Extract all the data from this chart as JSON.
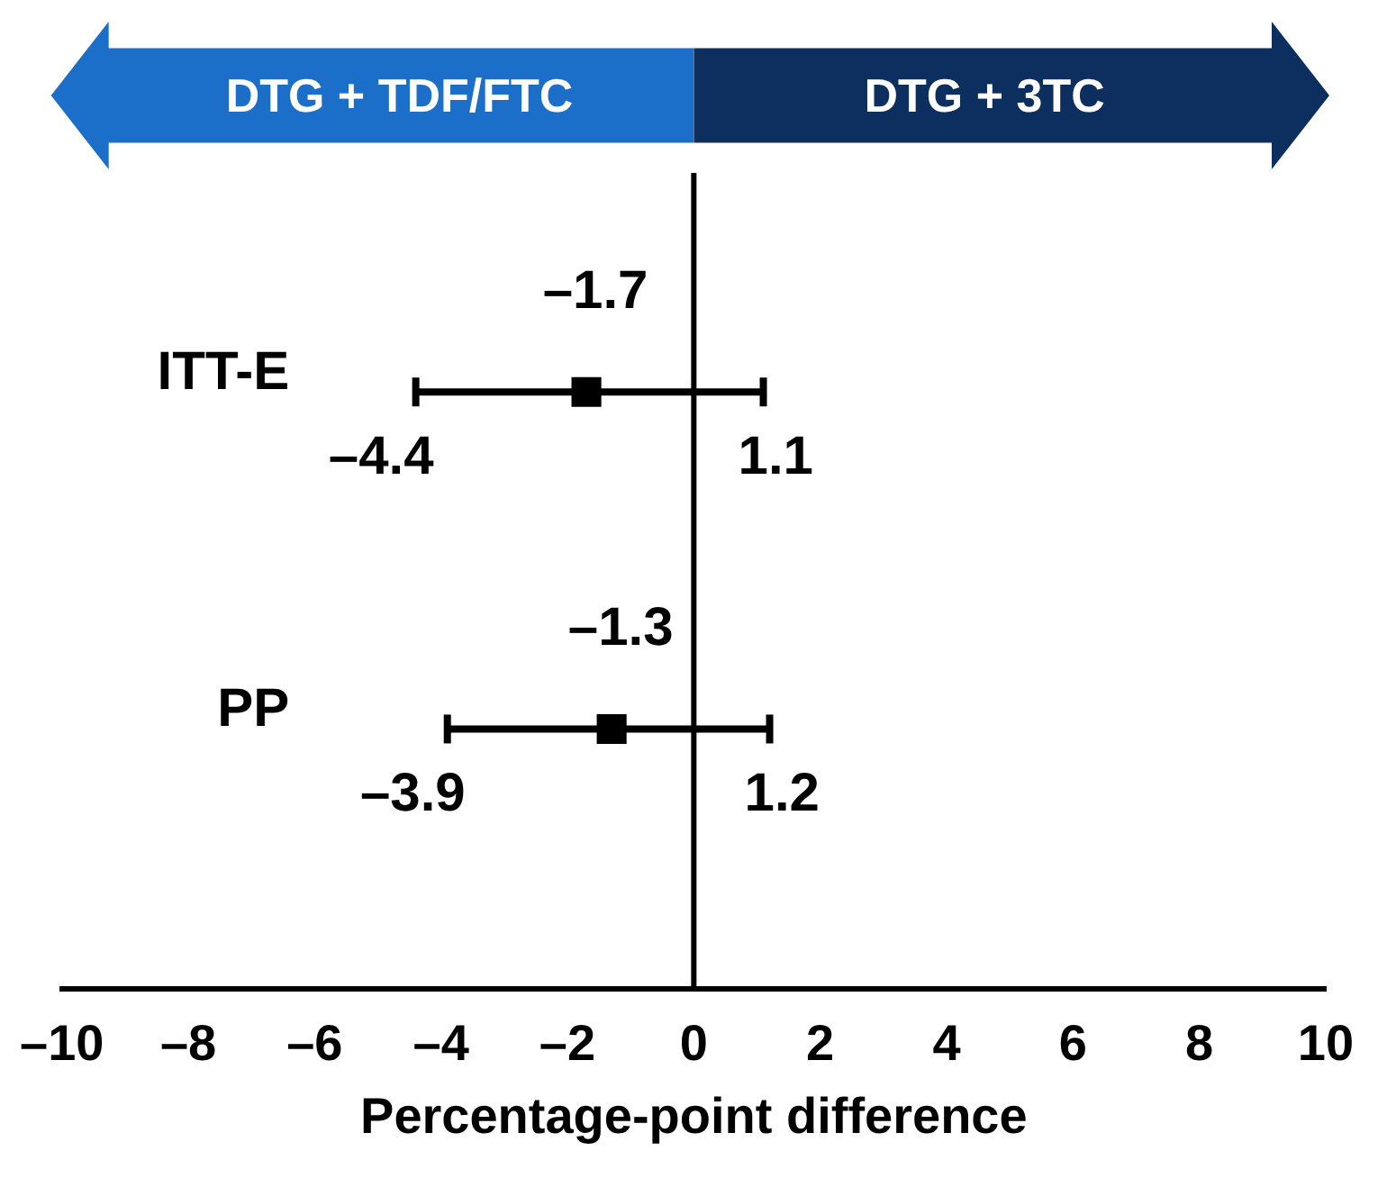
{
  "chart_data": {
    "type": "scatter",
    "orientation": "horizontal",
    "categories": [
      "ITT-E",
      "PP"
    ],
    "values": [
      -1.7,
      -1.3
    ],
    "errors": [
      [
        -4.4,
        1.1
      ],
      [
        -3.9,
        1.2
      ]
    ],
    "value_labels": [
      "–1.7",
      "–1.3"
    ],
    "color": "#000000",
    "marker": "square",
    "xlim": [
      -10,
      10
    ],
    "xticks": [
      {
        "value": -10,
        "label": "–10"
      },
      {
        "value": -8,
        "label": "–8"
      },
      {
        "value": -6,
        "label": "–6"
      },
      {
        "value": -4,
        "label": "–4"
      },
      {
        "value": -2,
        "label": "–2"
      },
      0,
      2,
      4,
      6,
      8,
      10
    ],
    "xlabel": "Percentage-point difference",
    "grid": false,
    "legend": false,
    "ref_lines": [
      {
        "axis": "x",
        "value": 0,
        "color": "#000000"
      }
    ],
    "annotations": [
      "DTG + TDF/FTC",
      "DTG + 3TC",
      "–4.4",
      "1.1",
      "–3.9",
      "1.2"
    ]
  }
}
